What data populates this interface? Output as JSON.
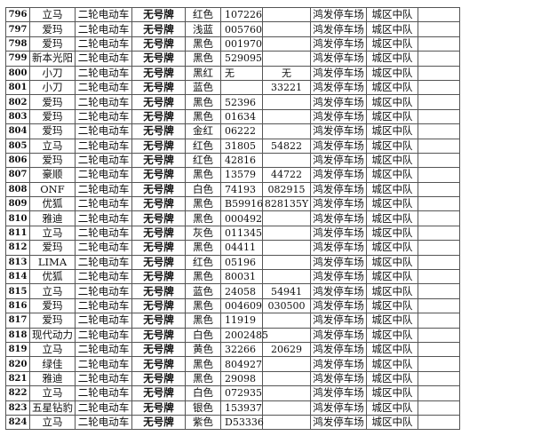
{
  "rows": [
    {
      "no": "796",
      "brand": "立马",
      "type": "二轮电动车",
      "plate": "无号牌",
      "color": "红色",
      "code1": "107226",
      "code2": "",
      "place": "鸿发停车场",
      "unit": "城区中队",
      "note": ""
    },
    {
      "no": "797",
      "brand": "爱玛",
      "type": "二轮电动车",
      "plate": "无号牌",
      "color": "浅蓝",
      "code1": "005760",
      "code2": "",
      "place": "鸿发停车场",
      "unit": "城区中队",
      "note": ""
    },
    {
      "no": "798",
      "brand": "爱玛",
      "type": "二轮电动车",
      "plate": "无号牌",
      "color": "黑色",
      "code1": "001970",
      "code2": "",
      "place": "鸿发停车场",
      "unit": "城区中队",
      "note": ""
    },
    {
      "no": "799",
      "brand": "新本光阳",
      "type": "二轮电动车",
      "plate": "无号牌",
      "color": "黑色",
      "code1": "529095",
      "code2": "",
      "place": "鸿发停车场",
      "unit": "城区中队",
      "note": ""
    },
    {
      "no": "800",
      "brand": "小刀",
      "type": "二轮电动车",
      "plate": "无号牌",
      "color": "黑红",
      "code1": "无",
      "code2": "无",
      "place": "鸿发停车场",
      "unit": "城区中队",
      "note": ""
    },
    {
      "no": "801",
      "brand": "小刀",
      "type": "二轮电动车",
      "plate": "无号牌",
      "color": "蓝色",
      "code1": "",
      "code2": "33221",
      "place": "鸿发停车场",
      "unit": "城区中队",
      "note": ""
    },
    {
      "no": "802",
      "brand": "爱玛",
      "type": "二轮电动车",
      "plate": "无号牌",
      "color": "黑色",
      "code1": "52396",
      "code2": "",
      "place": "鸿发停车场",
      "unit": "城区中队",
      "note": ""
    },
    {
      "no": "803",
      "brand": "爱玛",
      "type": "二轮电动车",
      "plate": "无号牌",
      "color": "黑色",
      "code1": "01634",
      "code2": "",
      "place": "鸿发停车场",
      "unit": "城区中队",
      "note": ""
    },
    {
      "no": "804",
      "brand": "爱玛",
      "type": "二轮电动车",
      "plate": "无号牌",
      "color": "金红",
      "code1": "06222",
      "code2": "",
      "place": "鸿发停车场",
      "unit": "城区中队",
      "note": ""
    },
    {
      "no": "805",
      "brand": "立马",
      "type": "二轮电动车",
      "plate": "无号牌",
      "color": "红色",
      "code1": "31805",
      "code2": "54822",
      "place": "鸿发停车场",
      "unit": "城区中队",
      "note": ""
    },
    {
      "no": "806",
      "brand": "爱玛",
      "type": "二轮电动车",
      "plate": "无号牌",
      "color": "红色",
      "code1": "42816",
      "code2": "",
      "place": "鸿发停车场",
      "unit": "城区中队",
      "note": ""
    },
    {
      "no": "807",
      "brand": "豪顺",
      "type": "二轮电动车",
      "plate": "无号牌",
      "color": "黑色",
      "code1": "13579",
      "code2": "44722",
      "place": "鸿发停车场",
      "unit": "城区中队",
      "note": ""
    },
    {
      "no": "808",
      "brand": "ONF",
      "type": "二轮电动车",
      "plate": "无号牌",
      "color": "白色",
      "code1": "74193",
      "code2": "082915",
      "place": "鸿发停车场",
      "unit": "城区中队",
      "note": ""
    },
    {
      "no": "809",
      "brand": "优狐",
      "type": "二轮电动车",
      "plate": "无号牌",
      "color": "黑色",
      "code1": "B59916",
      "code2": "828135Y",
      "place": "鸿发停车场",
      "unit": "城区中队",
      "note": ""
    },
    {
      "no": "810",
      "brand": "雅迪",
      "type": "二轮电动车",
      "plate": "无号牌",
      "color": "黑色",
      "code1": "000492",
      "code2": "",
      "place": "鸿发停车场",
      "unit": "城区中队",
      "note": ""
    },
    {
      "no": "811",
      "brand": "立马",
      "type": "二轮电动车",
      "plate": "无号牌",
      "color": "灰色",
      "code1": "011345",
      "code2": "",
      "place": "鸿发停车场",
      "unit": "城区中队",
      "note": ""
    },
    {
      "no": "812",
      "brand": "爱玛",
      "type": "二轮电动车",
      "plate": "无号牌",
      "color": "黑色",
      "code1": "04411",
      "code2": "",
      "place": "鸿发停车场",
      "unit": "城区中队",
      "note": ""
    },
    {
      "no": "813",
      "brand": "LIMA",
      "type": "二轮电动车",
      "plate": "无号牌",
      "color": "红色",
      "code1": "05196",
      "code2": "",
      "place": "鸿发停车场",
      "unit": "城区中队",
      "note": ""
    },
    {
      "no": "814",
      "brand": "优狐",
      "type": "二轮电动车",
      "plate": "无号牌",
      "color": "黑色",
      "code1": "80031",
      "code2": "",
      "place": "鸿发停车场",
      "unit": "城区中队",
      "note": ""
    },
    {
      "no": "815",
      "brand": "立马",
      "type": "二轮电动车",
      "plate": "无号牌",
      "color": "蓝色",
      "code1": "24058",
      "code2": "54941",
      "place": "鸿发停车场",
      "unit": "城区中队",
      "note": ""
    },
    {
      "no": "816",
      "brand": "爱玛",
      "type": "二轮电动车",
      "plate": "无号牌",
      "color": "黑色",
      "code1": "004609",
      "code2": "030500",
      "place": "鸿发停车场",
      "unit": "城区中队",
      "note": ""
    },
    {
      "no": "817",
      "brand": "爱玛",
      "type": "二轮电动车",
      "plate": "无号牌",
      "color": "黑色",
      "code1": "11919",
      "code2": "",
      "place": "鸿发停车场",
      "unit": "城区中队",
      "note": ""
    },
    {
      "no": "818",
      "brand": "现代动力",
      "type": "二轮电动车",
      "plate": "无号牌",
      "color": "白色",
      "code1": "2002485",
      "code2": "",
      "place": "鸿发停车场",
      "unit": "城区中队",
      "note": ""
    },
    {
      "no": "819",
      "brand": "立马",
      "type": "二轮电动车",
      "plate": "无号牌",
      "color": "黄色",
      "code1": "32266",
      "code2": "20629",
      "place": "鸿发停车场",
      "unit": "城区中队",
      "note": ""
    },
    {
      "no": "820",
      "brand": "绿佳",
      "type": "二轮电动车",
      "plate": "无号牌",
      "color": "黑色",
      "code1": "804927",
      "code2": "",
      "place": "鸿发停车场",
      "unit": "城区中队",
      "note": ""
    },
    {
      "no": "821",
      "brand": "雅迪",
      "type": "二轮电动车",
      "plate": "无号牌",
      "color": "黑色",
      "code1": "29098",
      "code2": "",
      "place": "鸿发停车场",
      "unit": "城区中队",
      "note": ""
    },
    {
      "no": "822",
      "brand": "立马",
      "type": "二轮电动车",
      "plate": "无号牌",
      "color": "白色",
      "code1": "072935",
      "code2": "",
      "place": "鸿发停车场",
      "unit": "城区中队",
      "note": ""
    },
    {
      "no": "823",
      "brand": "五星钻豹",
      "type": "二轮电动车",
      "plate": "无号牌",
      "color": "银色",
      "code1": "153937",
      "code2": "",
      "place": "鸿发停车场",
      "unit": "城区中队",
      "note": ""
    },
    {
      "no": "824",
      "brand": "立马",
      "type": "二轮电动车",
      "plate": "无号牌",
      "color": "紫色",
      "code1": "D53336",
      "code2": "",
      "place": "鸿发停车场",
      "unit": "城区中队",
      "note": ""
    }
  ]
}
